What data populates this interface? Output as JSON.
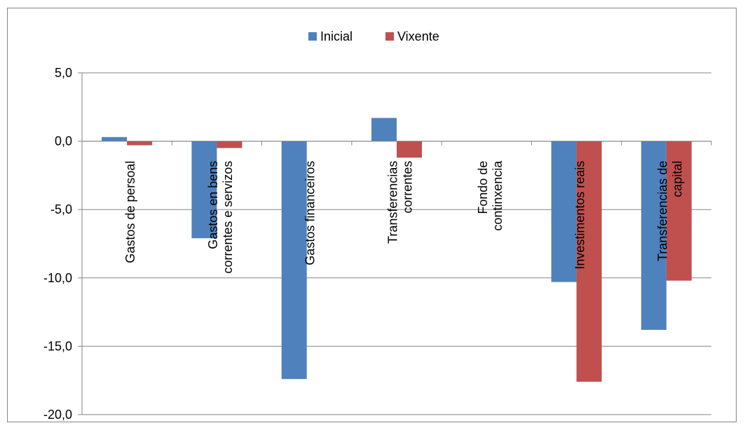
{
  "chart_data": {
    "type": "bar",
    "categories": [
      [
        "Gastos de persoal"
      ],
      [
        "Gastos en bens",
        "correntes e servizos"
      ],
      [
        "Gastos financeiros"
      ],
      [
        "Transferencias",
        "correntes"
      ],
      [
        "Fondo de",
        "continxencia"
      ],
      [
        "Investimentos reais"
      ],
      [
        "Transferencias de",
        "capital"
      ]
    ],
    "series": [
      {
        "name": "Inicial",
        "color": "#4F81BD",
        "values": [
          0.3,
          -7.1,
          -17.4,
          1.7,
          0.0,
          -10.3,
          -13.8
        ]
      },
      {
        "name": "Vixente",
        "color": "#C0504D",
        "values": [
          -0.3,
          -0.5,
          0.0,
          -1.2,
          0.0,
          -17.6,
          -10.2
        ]
      }
    ],
    "ylim": [
      -20,
      5
    ],
    "yticks": [
      "5,0",
      "0,0",
      "-5,0",
      "-10,0",
      "-15,0",
      "-20,0"
    ],
    "ytick_values": [
      5,
      0,
      -5,
      -10,
      -15,
      -20
    ],
    "grid": true,
    "legend_position": "top",
    "category_label_orientation": "vertical"
  }
}
